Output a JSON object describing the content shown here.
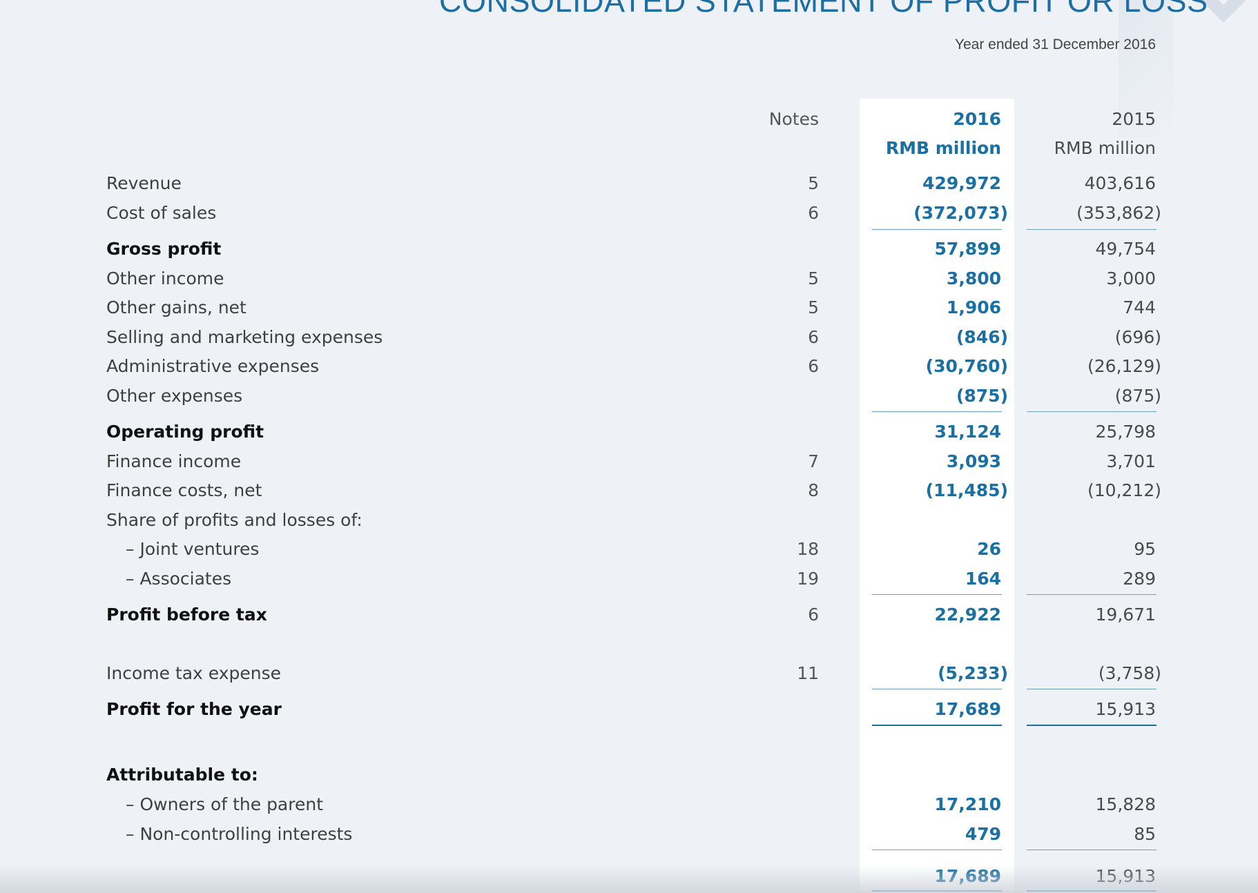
{
  "title": "CONSOLIDATED STATEMENT OF PROFIT OR LOSS",
  "subtitle": "Year ended 31 December 2016",
  "columns": {
    "notes": "Notes",
    "year_current": "2016",
    "year_prior": "2015",
    "unit_current": "RMB million",
    "unit_prior": "RMB million"
  },
  "colors": {
    "accent": "#1c6ea4",
    "highlight_column": "#ffffff",
    "background": "#eef2f7"
  },
  "rows": [
    {
      "label": "Revenue",
      "note": "5",
      "v2016": "429,972",
      "v2015": "403,616"
    },
    {
      "label": "Cost of sales",
      "note": "6",
      "v2016": "(372,073)",
      "v2015": "(353,862)"
    },
    {
      "label": "Gross profit",
      "note": "",
      "v2016": "57,899",
      "v2015": "49,754"
    },
    {
      "label": "Other income",
      "note": "5",
      "v2016": "3,800",
      "v2015": "3,000"
    },
    {
      "label": "Other gains, net",
      "note": "5",
      "v2016": "1,906",
      "v2015": "744"
    },
    {
      "label": "Selling and marketing expenses",
      "note": "6",
      "v2016": "(846)",
      "v2015": "(696)"
    },
    {
      "label": "Administrative expenses",
      "note": "6",
      "v2016": "(30,760)",
      "v2015": "(26,129)"
    },
    {
      "label": "Other expenses",
      "note": "",
      "v2016": "(875)",
      "v2015": "(875)"
    },
    {
      "label": "Operating profit",
      "note": "",
      "v2016": "31,124",
      "v2015": "25,798"
    },
    {
      "label": "Finance income",
      "note": "7",
      "v2016": "3,093",
      "v2015": "3,701"
    },
    {
      "label": "Finance costs, net",
      "note": "8",
      "v2016": "(11,485)",
      "v2015": "(10,212)"
    },
    {
      "label": "Share of profits and losses of:",
      "note": "",
      "v2016": "",
      "v2015": ""
    },
    {
      "label": "– Joint ventures",
      "note": "18",
      "v2016": "26",
      "v2015": "95"
    },
    {
      "label": "– Associates",
      "note": "19",
      "v2016": "164",
      "v2015": "289"
    },
    {
      "label": "Profit before tax",
      "note": "6",
      "v2016": "22,922",
      "v2015": "19,671"
    },
    {
      "label": "Income tax expense",
      "note": "11",
      "v2016": "(5,233)",
      "v2015": "(3,758)"
    },
    {
      "label": "Profit for the year",
      "note": "",
      "v2016": "17,689",
      "v2015": "15,913"
    },
    {
      "label": "Attributable to:",
      "note": "",
      "v2016": "",
      "v2015": ""
    },
    {
      "label": "– Owners of the parent",
      "note": "",
      "v2016": "17,210",
      "v2015": "15,828"
    },
    {
      "label": "– Non-controlling interests",
      "note": "",
      "v2016": "479",
      "v2015": "85"
    },
    {
      "label": "",
      "note": "",
      "v2016": "17,689",
      "v2015": "15,913"
    }
  ]
}
